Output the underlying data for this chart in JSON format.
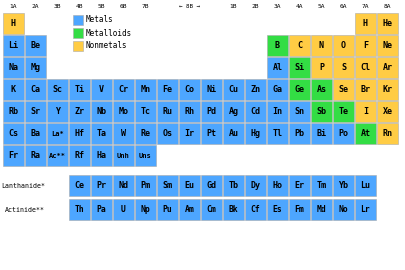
{
  "bg_color": "#ffffff",
  "metal_color": "#4da6ff",
  "metalloid_color": "#33dd44",
  "nonmetal_color": "#ffcc44",
  "elements": [
    {
      "symbol": "H",
      "row": 0,
      "col": 0,
      "type": "nonmetal"
    },
    {
      "symbol": "H",
      "row": 0,
      "col": 16,
      "type": "nonmetal"
    },
    {
      "symbol": "He",
      "row": 0,
      "col": 17,
      "type": "nonmetal"
    },
    {
      "symbol": "Li",
      "row": 1,
      "col": 0,
      "type": "metal"
    },
    {
      "symbol": "Be",
      "row": 1,
      "col": 1,
      "type": "metal"
    },
    {
      "symbol": "B",
      "row": 1,
      "col": 12,
      "type": "metalloid"
    },
    {
      "symbol": "C",
      "row": 1,
      "col": 13,
      "type": "nonmetal"
    },
    {
      "symbol": "N",
      "row": 1,
      "col": 14,
      "type": "nonmetal"
    },
    {
      "symbol": "O",
      "row": 1,
      "col": 15,
      "type": "nonmetal"
    },
    {
      "symbol": "F",
      "row": 1,
      "col": 16,
      "type": "nonmetal"
    },
    {
      "symbol": "Ne",
      "row": 1,
      "col": 17,
      "type": "nonmetal"
    },
    {
      "symbol": "Na",
      "row": 2,
      "col": 0,
      "type": "metal"
    },
    {
      "symbol": "Mg",
      "row": 2,
      "col": 1,
      "type": "metal"
    },
    {
      "symbol": "Al",
      "row": 2,
      "col": 12,
      "type": "metal"
    },
    {
      "symbol": "Si",
      "row": 2,
      "col": 13,
      "type": "metalloid"
    },
    {
      "symbol": "P",
      "row": 2,
      "col": 14,
      "type": "nonmetal"
    },
    {
      "symbol": "S",
      "row": 2,
      "col": 15,
      "type": "nonmetal"
    },
    {
      "symbol": "Cl",
      "row": 2,
      "col": 16,
      "type": "nonmetal"
    },
    {
      "symbol": "Ar",
      "row": 2,
      "col": 17,
      "type": "nonmetal"
    },
    {
      "symbol": "K",
      "row": 3,
      "col": 0,
      "type": "metal"
    },
    {
      "symbol": "Ca",
      "row": 3,
      "col": 1,
      "type": "metal"
    },
    {
      "symbol": "Sc",
      "row": 3,
      "col": 2,
      "type": "metal"
    },
    {
      "symbol": "Ti",
      "row": 3,
      "col": 3,
      "type": "metal"
    },
    {
      "symbol": "V",
      "row": 3,
      "col": 4,
      "type": "metal"
    },
    {
      "symbol": "Cr",
      "row": 3,
      "col": 5,
      "type": "metal"
    },
    {
      "symbol": "Mn",
      "row": 3,
      "col": 6,
      "type": "metal"
    },
    {
      "symbol": "Fe",
      "row": 3,
      "col": 7,
      "type": "metal"
    },
    {
      "symbol": "Co",
      "row": 3,
      "col": 8,
      "type": "metal"
    },
    {
      "symbol": "Ni",
      "row": 3,
      "col": 9,
      "type": "metal"
    },
    {
      "symbol": "Cu",
      "row": 3,
      "col": 10,
      "type": "metal"
    },
    {
      "symbol": "Zn",
      "row": 3,
      "col": 11,
      "type": "metal"
    },
    {
      "symbol": "Ga",
      "row": 3,
      "col": 12,
      "type": "metal"
    },
    {
      "symbol": "Ge",
      "row": 3,
      "col": 13,
      "type": "metalloid"
    },
    {
      "symbol": "As",
      "row": 3,
      "col": 14,
      "type": "metalloid"
    },
    {
      "symbol": "Se",
      "row": 3,
      "col": 15,
      "type": "nonmetal"
    },
    {
      "symbol": "Br",
      "row": 3,
      "col": 16,
      "type": "nonmetal"
    },
    {
      "symbol": "Kr",
      "row": 3,
      "col": 17,
      "type": "nonmetal"
    },
    {
      "symbol": "Rb",
      "row": 4,
      "col": 0,
      "type": "metal"
    },
    {
      "symbol": "Sr",
      "row": 4,
      "col": 1,
      "type": "metal"
    },
    {
      "symbol": "Y",
      "row": 4,
      "col": 2,
      "type": "metal"
    },
    {
      "symbol": "Zr",
      "row": 4,
      "col": 3,
      "type": "metal"
    },
    {
      "symbol": "Nb",
      "row": 4,
      "col": 4,
      "type": "metal"
    },
    {
      "symbol": "Mo",
      "row": 4,
      "col": 5,
      "type": "metal"
    },
    {
      "symbol": "Tc",
      "row": 4,
      "col": 6,
      "type": "metal"
    },
    {
      "symbol": "Ru",
      "row": 4,
      "col": 7,
      "type": "metal"
    },
    {
      "symbol": "Rh",
      "row": 4,
      "col": 8,
      "type": "metal"
    },
    {
      "symbol": "Pd",
      "row": 4,
      "col": 9,
      "type": "metal"
    },
    {
      "symbol": "Ag",
      "row": 4,
      "col": 10,
      "type": "metal"
    },
    {
      "symbol": "Cd",
      "row": 4,
      "col": 11,
      "type": "metal"
    },
    {
      "symbol": "In",
      "row": 4,
      "col": 12,
      "type": "metal"
    },
    {
      "symbol": "Sn",
      "row": 4,
      "col": 13,
      "type": "metal"
    },
    {
      "symbol": "Sb",
      "row": 4,
      "col": 14,
      "type": "metalloid"
    },
    {
      "symbol": "Te",
      "row": 4,
      "col": 15,
      "type": "metalloid"
    },
    {
      "symbol": "I",
      "row": 4,
      "col": 16,
      "type": "nonmetal"
    },
    {
      "symbol": "Xe",
      "row": 4,
      "col": 17,
      "type": "nonmetal"
    },
    {
      "symbol": "Cs",
      "row": 5,
      "col": 0,
      "type": "metal"
    },
    {
      "symbol": "Ba",
      "row": 5,
      "col": 1,
      "type": "metal"
    },
    {
      "symbol": "La*",
      "row": 5,
      "col": 2,
      "type": "metal"
    },
    {
      "symbol": "Hf",
      "row": 5,
      "col": 3,
      "type": "metal"
    },
    {
      "symbol": "Ta",
      "row": 5,
      "col": 4,
      "type": "metal"
    },
    {
      "symbol": "W",
      "row": 5,
      "col": 5,
      "type": "metal"
    },
    {
      "symbol": "Re",
      "row": 5,
      "col": 6,
      "type": "metal"
    },
    {
      "symbol": "Os",
      "row": 5,
      "col": 7,
      "type": "metal"
    },
    {
      "symbol": "Ir",
      "row": 5,
      "col": 8,
      "type": "metal"
    },
    {
      "symbol": "Pt",
      "row": 5,
      "col": 9,
      "type": "metal"
    },
    {
      "symbol": "Au",
      "row": 5,
      "col": 10,
      "type": "metal"
    },
    {
      "symbol": "Hg",
      "row": 5,
      "col": 11,
      "type": "metal"
    },
    {
      "symbol": "Tl",
      "row": 5,
      "col": 12,
      "type": "metal"
    },
    {
      "symbol": "Pb",
      "row": 5,
      "col": 13,
      "type": "metal"
    },
    {
      "symbol": "Bi",
      "row": 5,
      "col": 14,
      "type": "metal"
    },
    {
      "symbol": "Po",
      "row": 5,
      "col": 15,
      "type": "metal"
    },
    {
      "symbol": "At",
      "row": 5,
      "col": 16,
      "type": "metalloid"
    },
    {
      "symbol": "Rn",
      "row": 5,
      "col": 17,
      "type": "nonmetal"
    },
    {
      "symbol": "Fr",
      "row": 6,
      "col": 0,
      "type": "metal"
    },
    {
      "symbol": "Ra",
      "row": 6,
      "col": 1,
      "type": "metal"
    },
    {
      "symbol": "Ac**",
      "row": 6,
      "col": 2,
      "type": "metal"
    },
    {
      "symbol": "Rf",
      "row": 6,
      "col": 3,
      "type": "metal"
    },
    {
      "symbol": "Ha",
      "row": 6,
      "col": 4,
      "type": "metal"
    },
    {
      "symbol": "Unh",
      "row": 6,
      "col": 5,
      "type": "metal"
    },
    {
      "symbol": "Uns",
      "row": 6,
      "col": 6,
      "type": "metal"
    }
  ],
  "lanthanides": [
    "Ce",
    "Pr",
    "Nd",
    "Pm",
    "Sm",
    "Eu",
    "Gd",
    "Tb",
    "Dy",
    "Ho",
    "Er",
    "Tm",
    "Yb",
    "Lu"
  ],
  "actinides": [
    "Th",
    "Pa",
    "U",
    "Np",
    "Pu",
    "Am",
    "Cm",
    "Bk",
    "Cf",
    "Es",
    "Fm",
    "Md",
    "No",
    "Lr"
  ],
  "col_labels": {
    "0": "1A",
    "1": "2A",
    "2": "3B",
    "3": "4B",
    "4": "5B",
    "5": "6B",
    "6": "7B",
    "10": "1B",
    "11": "2B",
    "12": "3A",
    "13": "4A",
    "14": "5A",
    "15": "6A",
    "16": "7A",
    "17": "8A"
  },
  "8b_cols": [
    7,
    8,
    9
  ],
  "legend": [
    {
      "label": "Metals",
      "color": "#4da6ff"
    },
    {
      "label": "Metalloids",
      "color": "#33dd44"
    },
    {
      "label": "Nonmetals",
      "color": "#ffcc44"
    }
  ]
}
